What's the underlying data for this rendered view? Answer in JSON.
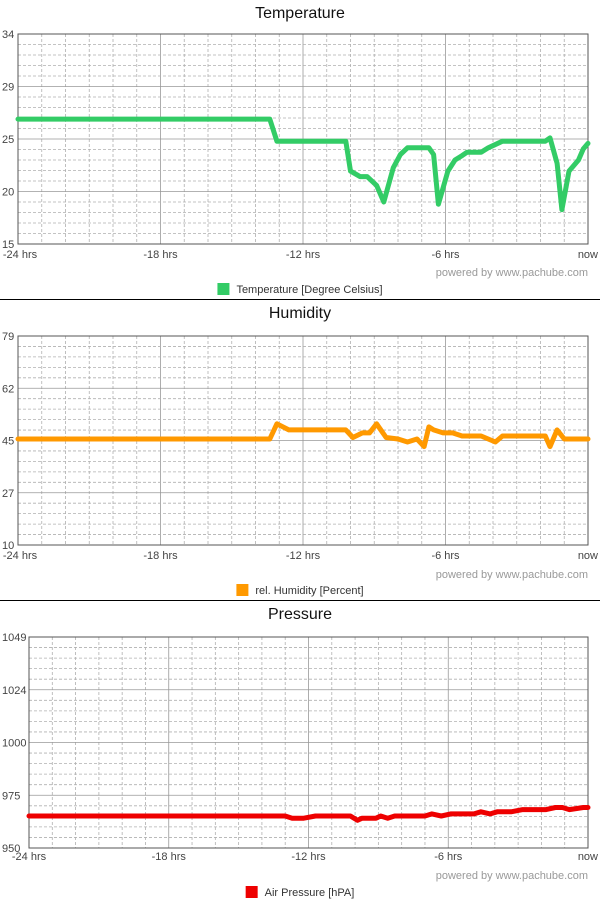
{
  "credit": "powered by www.pachube.com",
  "chart_data": [
    {
      "type": "line",
      "title": "Temperature",
      "ylim": [
        15,
        34
      ],
      "yticks": [
        "15",
        "20",
        "25",
        "29",
        "34"
      ],
      "xlim": [
        -24,
        0
      ],
      "xticks": [
        {
          "value": -24,
          "label": "-24 hrs"
        },
        {
          "value": -18,
          "label": "-18 hrs"
        },
        {
          "value": -12,
          "label": "-12 hrs"
        },
        {
          "value": -6,
          "label": "-6 hrs"
        },
        {
          "value": 0,
          "label": "now"
        }
      ],
      "grid": true,
      "legend_position": "bottom-center",
      "series": [
        {
          "name": "Temperature [Degree Celsius]",
          "color": "#33cc66",
          "x": [
            -24,
            -13.4,
            -13.1,
            -10.2,
            -10.0,
            -9.6,
            -9.3,
            -8.9,
            -8.6,
            -8.2,
            -7.9,
            -7.6,
            -7.2,
            -6.7,
            -6.5,
            -6.3,
            -5.9,
            -5.6,
            -5.3,
            -5.1,
            -4.5,
            -4.2,
            -3.6,
            -1.8,
            -1.6,
            -1.3,
            -1.1,
            -0.8,
            -0.4,
            -0.2,
            0
          ],
          "y": [
            26.3,
            26.3,
            24.3,
            24.3,
            21.6,
            21.1,
            21.1,
            20.3,
            18.8,
            21.9,
            23.1,
            23.7,
            23.7,
            23.7,
            23.1,
            18.6,
            21.6,
            22.6,
            23.0,
            23.3,
            23.3,
            23.7,
            24.3,
            24.3,
            24.6,
            22.3,
            18.1,
            21.6,
            22.6,
            23.6,
            24.1
          ]
        }
      ]
    },
    {
      "type": "line",
      "title": "Humidity",
      "ylim": [
        10,
        79
      ],
      "yticks": [
        "10",
        "27",
        "45",
        "62",
        "79"
      ],
      "xlim": [
        -24,
        0
      ],
      "xticks": [
        {
          "value": -24,
          "label": "-24 hrs"
        },
        {
          "value": -18,
          "label": "-18 hrs"
        },
        {
          "value": -12,
          "label": "-12 hrs"
        },
        {
          "value": -6,
          "label": "-6 hrs"
        },
        {
          "value": 0,
          "label": "now"
        }
      ],
      "grid": true,
      "legend_position": "bottom-center",
      "series": [
        {
          "name": "rel. Humidity [Percent]",
          "color": "#ff9900",
          "x": [
            -24,
            -13.4,
            -13.1,
            -12.6,
            -10.2,
            -9.9,
            -9.5,
            -9.2,
            -8.9,
            -8.5,
            -8.0,
            -7.6,
            -7.2,
            -6.9,
            -6.7,
            -6.5,
            -6.1,
            -5.7,
            -5.3,
            -5.0,
            -4.5,
            -3.9,
            -3.6,
            -3.1,
            -1.8,
            -1.6,
            -1.3,
            -1.0,
            -0.7,
            0
          ],
          "y": [
            45,
            45,
            50,
            48,
            48,
            45.5,
            47,
            47,
            50,
            45.5,
            45,
            44,
            45,
            42.5,
            49,
            48,
            47,
            47,
            46,
            46,
            46,
            44,
            46,
            46,
            46,
            42.5,
            48,
            45,
            45,
            45
          ]
        }
      ]
    },
    {
      "type": "line",
      "title": "Pressure",
      "ylim": [
        950,
        1049
      ],
      "yticks": [
        "950",
        "975",
        "1000",
        "1024",
        "1049"
      ],
      "xlim": [
        -24,
        0
      ],
      "xticks": [
        {
          "value": -24,
          "label": "-24 hrs"
        },
        {
          "value": -18,
          "label": "-18 hrs"
        },
        {
          "value": -12,
          "label": "-12 hrs"
        },
        {
          "value": -6,
          "label": "-6 hrs"
        },
        {
          "value": 0,
          "label": "now"
        }
      ],
      "grid": true,
      "legend_position": "bottom-center",
      "series": [
        {
          "name": "Air Pressure [hPA]",
          "color": "#ee0000",
          "x": [
            -24,
            -13,
            -12.7,
            -12.2,
            -11.7,
            -10.2,
            -9.9,
            -9.7,
            -9.1,
            -8.9,
            -8.6,
            -8.3,
            -7.0,
            -6.7,
            -6.3,
            -5.9,
            -4.9,
            -4.6,
            -4.2,
            -3.9,
            -3.3,
            -2.8,
            -1.8,
            -1.4,
            -1.1,
            -0.8,
            -0.2,
            0
          ],
          "y": [
            965,
            965,
            964,
            964,
            965,
            965,
            963,
            964,
            964,
            965,
            964,
            965,
            965,
            966,
            965,
            966,
            966,
            967,
            966,
            967,
            967,
            968,
            968,
            969,
            969,
            968,
            969,
            969
          ]
        }
      ]
    }
  ]
}
